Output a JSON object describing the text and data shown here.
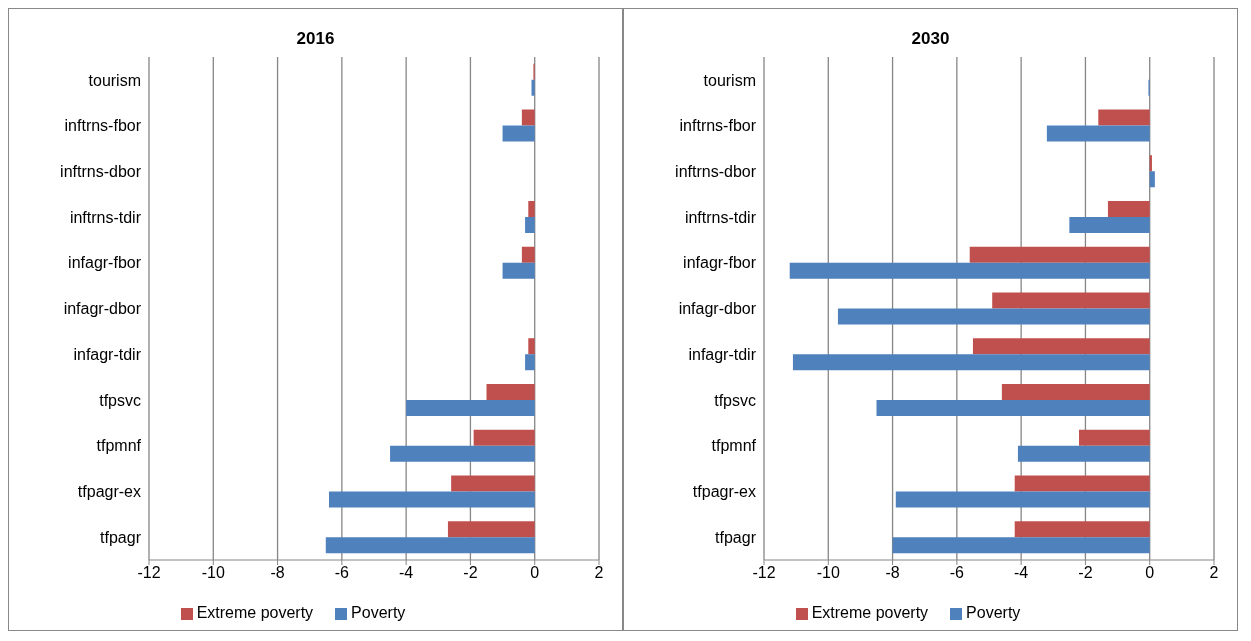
{
  "chart_data": [
    {
      "type": "bar",
      "orientation": "horizontal",
      "title": "2016",
      "categories": [
        "tourism",
        "inftrns-fbor",
        "inftrns-dbor",
        "inftrns-tdir",
        "infagr-fbor",
        "infagr-dbor",
        "infagr-tdir",
        "tfpsvc",
        "tfpmnf",
        "tfpagr-ex",
        "tfpagr"
      ],
      "series": [
        {
          "name": "Extreme poverty",
          "color": "#c0504d",
          "values": [
            -0.04,
            -0.4,
            0,
            -0.2,
            -0.4,
            0,
            -0.2,
            -1.5,
            -1.9,
            -2.6,
            -2.7
          ]
        },
        {
          "name": "Poverty",
          "color": "#4f81bd",
          "values": [
            -0.1,
            -1.0,
            0,
            -0.3,
            -1.0,
            0,
            -0.3,
            -4.0,
            -4.5,
            -6.4,
            -6.5
          ]
        }
      ],
      "xlim": [
        -12,
        2
      ],
      "xticks": [
        -12,
        -10,
        -8,
        -6,
        -4,
        -2,
        0,
        2
      ],
      "grid": "x",
      "legend": "bottom"
    },
    {
      "type": "bar",
      "orientation": "horizontal",
      "title": "2030",
      "categories": [
        "tourism",
        "inftrns-fbor",
        "inftrns-dbor",
        "inftrns-tdir",
        "infagr-fbor",
        "infagr-dbor",
        "infagr-tdir",
        "tfpsvc",
        "tfpmnf",
        "tfpagr-ex",
        "tfpagr"
      ],
      "series": [
        {
          "name": "Extreme poverty",
          "color": "#c0504d",
          "values": [
            0,
            -1.6,
            0.07,
            -1.3,
            -5.6,
            -4.9,
            -5.5,
            -4.6,
            -2.2,
            -4.2,
            -4.2
          ]
        },
        {
          "name": "Poverty",
          "color": "#4f81bd",
          "values": [
            -0.04,
            -3.2,
            0.16,
            -2.5,
            -11.2,
            -9.7,
            -11.1,
            -8.5,
            -4.1,
            -7.9,
            -8.0
          ]
        }
      ],
      "xlim": [
        -12,
        2
      ],
      "xticks": [
        -12,
        -10,
        -8,
        -6,
        -4,
        -2,
        0,
        2
      ],
      "grid": "x",
      "legend": "bottom"
    }
  ]
}
